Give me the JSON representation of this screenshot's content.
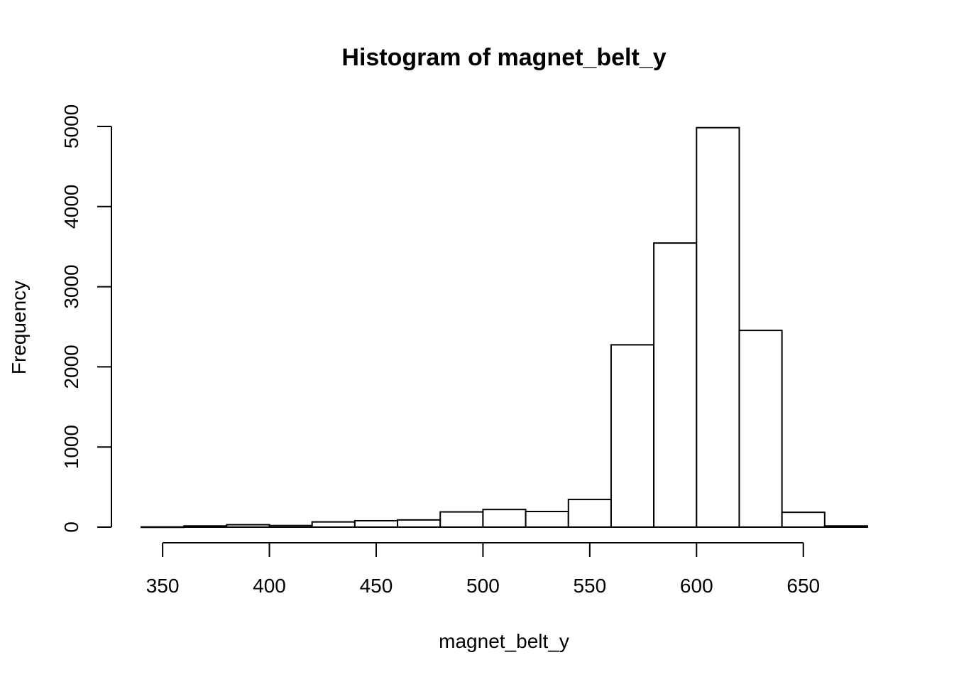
{
  "chart_data": {
    "type": "bar",
    "title": "Histogram of magnet_belt_y",
    "xlabel": "magnet_belt_y",
    "ylabel": "Frequency",
    "x_ticks": [
      350,
      400,
      450,
      500,
      550,
      600,
      650
    ],
    "y_ticks": [
      0,
      1000,
      2000,
      3000,
      4000,
      5000
    ],
    "xlim": [
      340,
      680
    ],
    "ylim": [
      0,
      5000
    ],
    "grid": false,
    "bins": [
      {
        "start": 340,
        "end": 360,
        "count": 2
      },
      {
        "start": 360,
        "end": 380,
        "count": 15
      },
      {
        "start": 380,
        "end": 400,
        "count": 30
      },
      {
        "start": 400,
        "end": 420,
        "count": 20
      },
      {
        "start": 420,
        "end": 440,
        "count": 65
      },
      {
        "start": 440,
        "end": 460,
        "count": 80
      },
      {
        "start": 460,
        "end": 480,
        "count": 90
      },
      {
        "start": 480,
        "end": 500,
        "count": 190
      },
      {
        "start": 500,
        "end": 520,
        "count": 220
      },
      {
        "start": 520,
        "end": 540,
        "count": 195
      },
      {
        "start": 540,
        "end": 560,
        "count": 345
      },
      {
        "start": 560,
        "end": 580,
        "count": 2275
      },
      {
        "start": 580,
        "end": 600,
        "count": 3545
      },
      {
        "start": 600,
        "end": 620,
        "count": 4985
      },
      {
        "start": 620,
        "end": 640,
        "count": 2455
      },
      {
        "start": 640,
        "end": 660,
        "count": 185
      },
      {
        "start": 660,
        "end": 680,
        "count": 15
      }
    ]
  }
}
